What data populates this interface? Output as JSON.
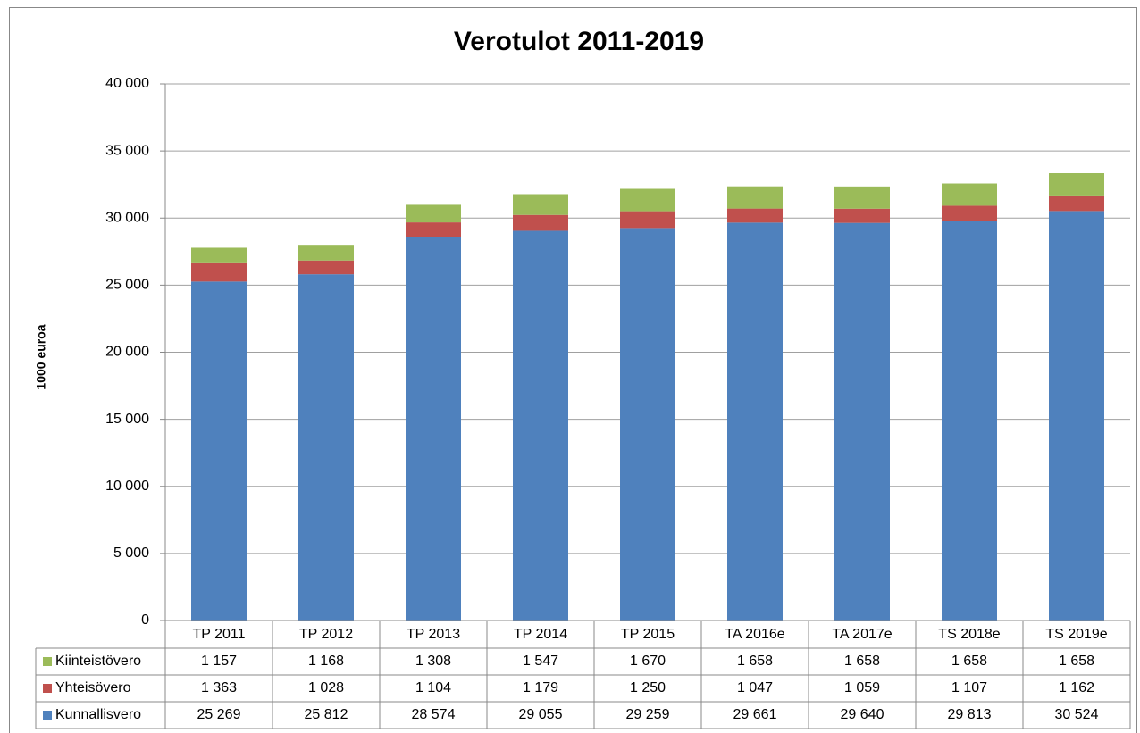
{
  "chart_data": {
    "type": "stacked_bar",
    "title": "Verotulot 2011-2019",
    "y_label": "1000 euroa",
    "categories": [
      "TP 2011",
      "TP 2012",
      "TP 2013",
      "TP 2014",
      "TP 2015",
      "TA 2016e",
      "TA 2017e",
      "TS 2018e",
      "TS 2019e"
    ],
    "series": [
      {
        "name": "Kunnallisvero",
        "color": "#4f81bd",
        "values": [
          25269,
          25812,
          28574,
          29055,
          29259,
          29661,
          29640,
          29813,
          30524
        ],
        "value_labels": [
          "25 269",
          "25 812",
          "28 574",
          "29 055",
          "29 259",
          "29 661",
          "29 640",
          "29 813",
          "30 524"
        ]
      },
      {
        "name": "Yhteisövero",
        "color": "#c0504d",
        "values": [
          1363,
          1028,
          1104,
          1179,
          1250,
          1047,
          1059,
          1107,
          1162
        ],
        "value_labels": [
          "1 363",
          "1 028",
          "1 104",
          "1 179",
          "1 250",
          "1 047",
          "1 059",
          "1 107",
          "1 162"
        ]
      },
      {
        "name": "Kiinteistövero",
        "color": "#9bbb59",
        "values": [
          1157,
          1168,
          1308,
          1547,
          1670,
          1658,
          1658,
          1658,
          1658
        ],
        "value_labels": [
          "1 157",
          "1 168",
          "1 308",
          "1 547",
          "1 670",
          "1 658",
          "1 658",
          "1 658",
          "1 658"
        ]
      }
    ],
    "ylim": [
      0,
      40000
    ],
    "yticks": [
      0,
      {
        "value": 5000,
        "label": "5 000"
      },
      {
        "value": 10000,
        "label": "10 000"
      },
      {
        "value": 15000,
        "label": "15 000"
      },
      {
        "value": 20000,
        "label": "20 000"
      },
      {
        "value": 25000,
        "label": "25 000"
      },
      {
        "value": 30000,
        "label": "30 000"
      },
      {
        "value": 35000,
        "label": "35 000"
      },
      {
        "value": 40000,
        "label": "40 000"
      }
    ],
    "grid": true
  }
}
